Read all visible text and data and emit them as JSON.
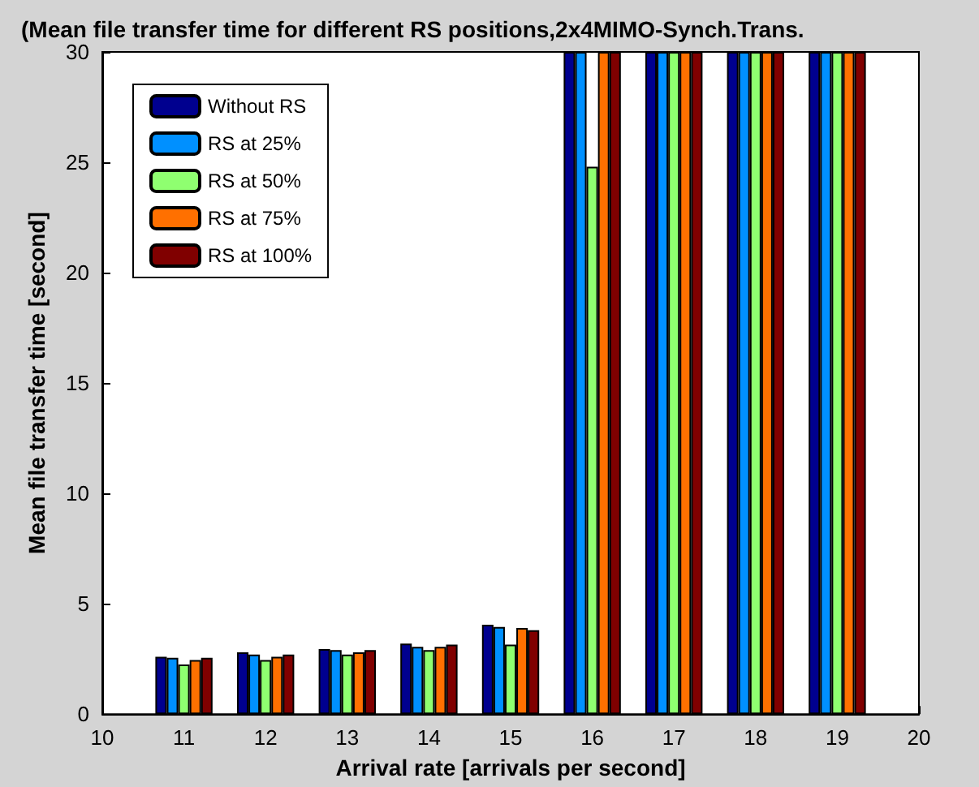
{
  "chart_data": {
    "type": "bar",
    "title": "(Mean file transfer time for different RS positions,2x4MIMO-Synch.Trans.",
    "xlabel": "Arrival rate [arrivals per second]",
    "ylabel": "Mean file transfer time [second]",
    "x": [
      11,
      12,
      13,
      14,
      15,
      16,
      17,
      18,
      19
    ],
    "series": [
      {
        "name": "Without RS",
        "color": "#00008f",
        "values": [
          2.6,
          2.8,
          2.95,
          3.2,
          4.05,
          30,
          30,
          30,
          30
        ]
      },
      {
        "name": "RS at 25%",
        "color": "#0090ff",
        "values": [
          2.55,
          2.7,
          2.9,
          3.05,
          3.95,
          30,
          30,
          30,
          30
        ]
      },
      {
        "name": "RS at 50%",
        "color": "#8fff70",
        "values": [
          2.25,
          2.45,
          2.7,
          2.9,
          3.15,
          24.8,
          30,
          30,
          30
        ]
      },
      {
        "name": "RS at 75%",
        "color": "#ff7000",
        "values": [
          2.45,
          2.6,
          2.8,
          3.05,
          3.9,
          30,
          30,
          30,
          30
        ]
      },
      {
        "name": "RS at 100%",
        "color": "#800000",
        "values": [
          2.55,
          2.7,
          2.9,
          3.15,
          3.8,
          30,
          30,
          30,
          30
        ]
      }
    ],
    "xlim": [
      10,
      20
    ],
    "xticks": [
      10,
      11,
      12,
      13,
      14,
      15,
      16,
      17,
      18,
      19,
      20
    ],
    "ylim": [
      0,
      30
    ],
    "yticks": [
      0,
      5,
      10,
      15,
      20,
      25,
      30
    ],
    "grid": false,
    "legend": "top left"
  }
}
